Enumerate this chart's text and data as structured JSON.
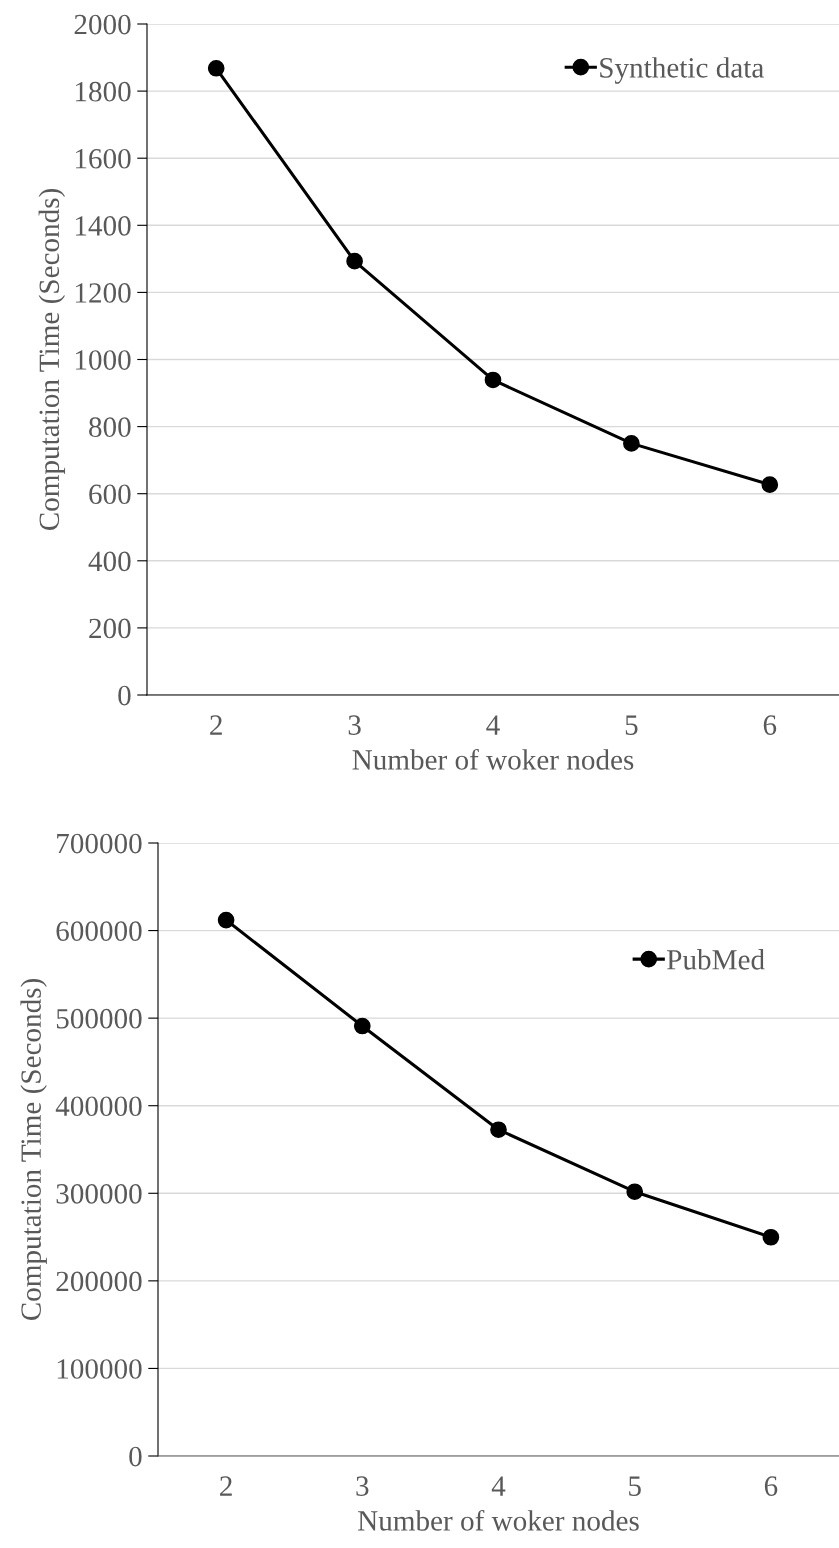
{
  "chart_data": [
    {
      "type": "line",
      "categories": [
        "2",
        "3",
        "4",
        "5",
        "6"
      ],
      "xlabel": "Number of woker nodes",
      "ylabel": "Computation Time (Seconds)",
      "ylim": [
        0,
        2000
      ],
      "yticks": [
        0,
        200,
        400,
        600,
        800,
        1000,
        1200,
        1400,
        1600,
        1800,
        2000
      ],
      "grid": "y",
      "legend": "top right",
      "marker": "circle",
      "line_style": "solid",
      "series": [
        {
          "name": "Synthetic data",
          "color": "#000000",
          "values": [
            1868,
            1293,
            939,
            750,
            627
          ]
        }
      ]
    },
    {
      "type": "line",
      "categories": [
        "2",
        "3",
        "4",
        "5",
        "6"
      ],
      "xlabel": "Number of woker nodes",
      "ylabel": "Computation Time (Seconds)",
      "ylim": [
        0,
        700000
      ],
      "yticks": [
        0,
        100000,
        200000,
        300000,
        400000,
        500000,
        600000,
        700000
      ],
      "grid": "y",
      "legend": "top right",
      "marker": "circle",
      "line_style": "solid",
      "series": [
        {
          "name": "PubMed",
          "color": "#000000",
          "values": [
            612000,
            491000,
            372600,
            301800,
            249800
          ]
        }
      ]
    }
  ]
}
